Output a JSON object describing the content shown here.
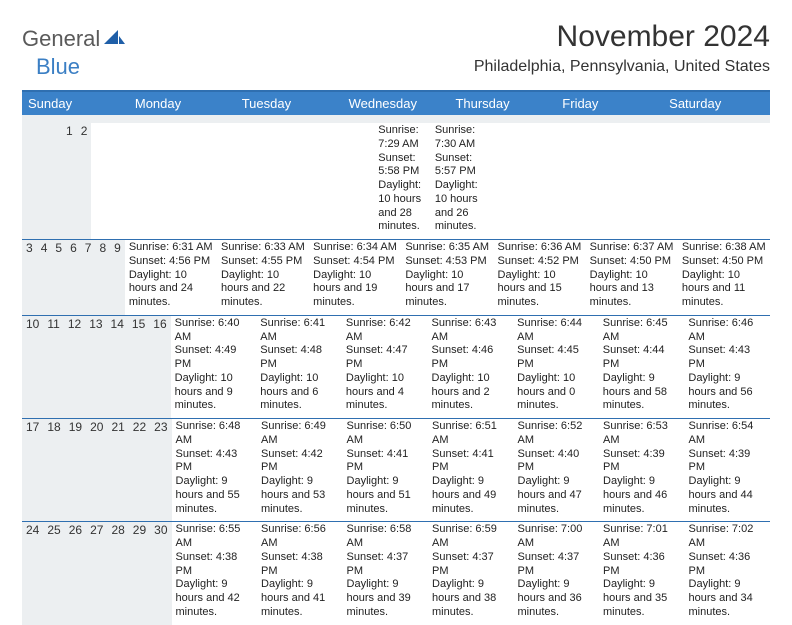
{
  "brand": {
    "part1": "General",
    "part2": "Blue"
  },
  "title": "November 2024",
  "location": "Philadelphia, Pennsylvania, United States",
  "colors": {
    "header_bg": "#3b82c9",
    "rule": "#2f6fb0",
    "shade": "#eceff1",
    "logo_gray": "#5a5a5a",
    "logo_blue": "#3b7fc4"
  },
  "dow": [
    "Sunday",
    "Monday",
    "Tuesday",
    "Wednesday",
    "Thursday",
    "Friday",
    "Saturday"
  ],
  "weeks": [
    [
      null,
      null,
      null,
      null,
      null,
      {
        "n": "1",
        "sr": "Sunrise: 7:29 AM",
        "ss": "Sunset: 5:58 PM",
        "dl": "Daylight: 10 hours and 28 minutes."
      },
      {
        "n": "2",
        "sr": "Sunrise: 7:30 AM",
        "ss": "Sunset: 5:57 PM",
        "dl": "Daylight: 10 hours and 26 minutes."
      }
    ],
    [
      {
        "n": "3",
        "sr": "Sunrise: 6:31 AM",
        "ss": "Sunset: 4:56 PM",
        "dl": "Daylight: 10 hours and 24 minutes."
      },
      {
        "n": "4",
        "sr": "Sunrise: 6:33 AM",
        "ss": "Sunset: 4:55 PM",
        "dl": "Daylight: 10 hours and 22 minutes."
      },
      {
        "n": "5",
        "sr": "Sunrise: 6:34 AM",
        "ss": "Sunset: 4:54 PM",
        "dl": "Daylight: 10 hours and 19 minutes."
      },
      {
        "n": "6",
        "sr": "Sunrise: 6:35 AM",
        "ss": "Sunset: 4:53 PM",
        "dl": "Daylight: 10 hours and 17 minutes."
      },
      {
        "n": "7",
        "sr": "Sunrise: 6:36 AM",
        "ss": "Sunset: 4:52 PM",
        "dl": "Daylight: 10 hours and 15 minutes."
      },
      {
        "n": "8",
        "sr": "Sunrise: 6:37 AM",
        "ss": "Sunset: 4:50 PM",
        "dl": "Daylight: 10 hours and 13 minutes."
      },
      {
        "n": "9",
        "sr": "Sunrise: 6:38 AM",
        "ss": "Sunset: 4:50 PM",
        "dl": "Daylight: 10 hours and 11 minutes."
      }
    ],
    [
      {
        "n": "10",
        "sr": "Sunrise: 6:40 AM",
        "ss": "Sunset: 4:49 PM",
        "dl": "Daylight: 10 hours and 9 minutes."
      },
      {
        "n": "11",
        "sr": "Sunrise: 6:41 AM",
        "ss": "Sunset: 4:48 PM",
        "dl": "Daylight: 10 hours and 6 minutes."
      },
      {
        "n": "12",
        "sr": "Sunrise: 6:42 AM",
        "ss": "Sunset: 4:47 PM",
        "dl": "Daylight: 10 hours and 4 minutes."
      },
      {
        "n": "13",
        "sr": "Sunrise: 6:43 AM",
        "ss": "Sunset: 4:46 PM",
        "dl": "Daylight: 10 hours and 2 minutes."
      },
      {
        "n": "14",
        "sr": "Sunrise: 6:44 AM",
        "ss": "Sunset: 4:45 PM",
        "dl": "Daylight: 10 hours and 0 minutes."
      },
      {
        "n": "15",
        "sr": "Sunrise: 6:45 AM",
        "ss": "Sunset: 4:44 PM",
        "dl": "Daylight: 9 hours and 58 minutes."
      },
      {
        "n": "16",
        "sr": "Sunrise: 6:46 AM",
        "ss": "Sunset: 4:43 PM",
        "dl": "Daylight: 9 hours and 56 minutes."
      }
    ],
    [
      {
        "n": "17",
        "sr": "Sunrise: 6:48 AM",
        "ss": "Sunset: 4:43 PM",
        "dl": "Daylight: 9 hours and 55 minutes."
      },
      {
        "n": "18",
        "sr": "Sunrise: 6:49 AM",
        "ss": "Sunset: 4:42 PM",
        "dl": "Daylight: 9 hours and 53 minutes."
      },
      {
        "n": "19",
        "sr": "Sunrise: 6:50 AM",
        "ss": "Sunset: 4:41 PM",
        "dl": "Daylight: 9 hours and 51 minutes."
      },
      {
        "n": "20",
        "sr": "Sunrise: 6:51 AM",
        "ss": "Sunset: 4:41 PM",
        "dl": "Daylight: 9 hours and 49 minutes."
      },
      {
        "n": "21",
        "sr": "Sunrise: 6:52 AM",
        "ss": "Sunset: 4:40 PM",
        "dl": "Daylight: 9 hours and 47 minutes."
      },
      {
        "n": "22",
        "sr": "Sunrise: 6:53 AM",
        "ss": "Sunset: 4:39 PM",
        "dl": "Daylight: 9 hours and 46 minutes."
      },
      {
        "n": "23",
        "sr": "Sunrise: 6:54 AM",
        "ss": "Sunset: 4:39 PM",
        "dl": "Daylight: 9 hours and 44 minutes."
      }
    ],
    [
      {
        "n": "24",
        "sr": "Sunrise: 6:55 AM",
        "ss": "Sunset: 4:38 PM",
        "dl": "Daylight: 9 hours and 42 minutes."
      },
      {
        "n": "25",
        "sr": "Sunrise: 6:56 AM",
        "ss": "Sunset: 4:38 PM",
        "dl": "Daylight: 9 hours and 41 minutes."
      },
      {
        "n": "26",
        "sr": "Sunrise: 6:58 AM",
        "ss": "Sunset: 4:37 PM",
        "dl": "Daylight: 9 hours and 39 minutes."
      },
      {
        "n": "27",
        "sr": "Sunrise: 6:59 AM",
        "ss": "Sunset: 4:37 PM",
        "dl": "Daylight: 9 hours and 38 minutes."
      },
      {
        "n": "28",
        "sr": "Sunrise: 7:00 AM",
        "ss": "Sunset: 4:37 PM",
        "dl": "Daylight: 9 hours and 36 minutes."
      },
      {
        "n": "29",
        "sr": "Sunrise: 7:01 AM",
        "ss": "Sunset: 4:36 PM",
        "dl": "Daylight: 9 hours and 35 minutes."
      },
      {
        "n": "30",
        "sr": "Sunrise: 7:02 AM",
        "ss": "Sunset: 4:36 PM",
        "dl": "Daylight: 9 hours and 34 minutes."
      }
    ]
  ]
}
